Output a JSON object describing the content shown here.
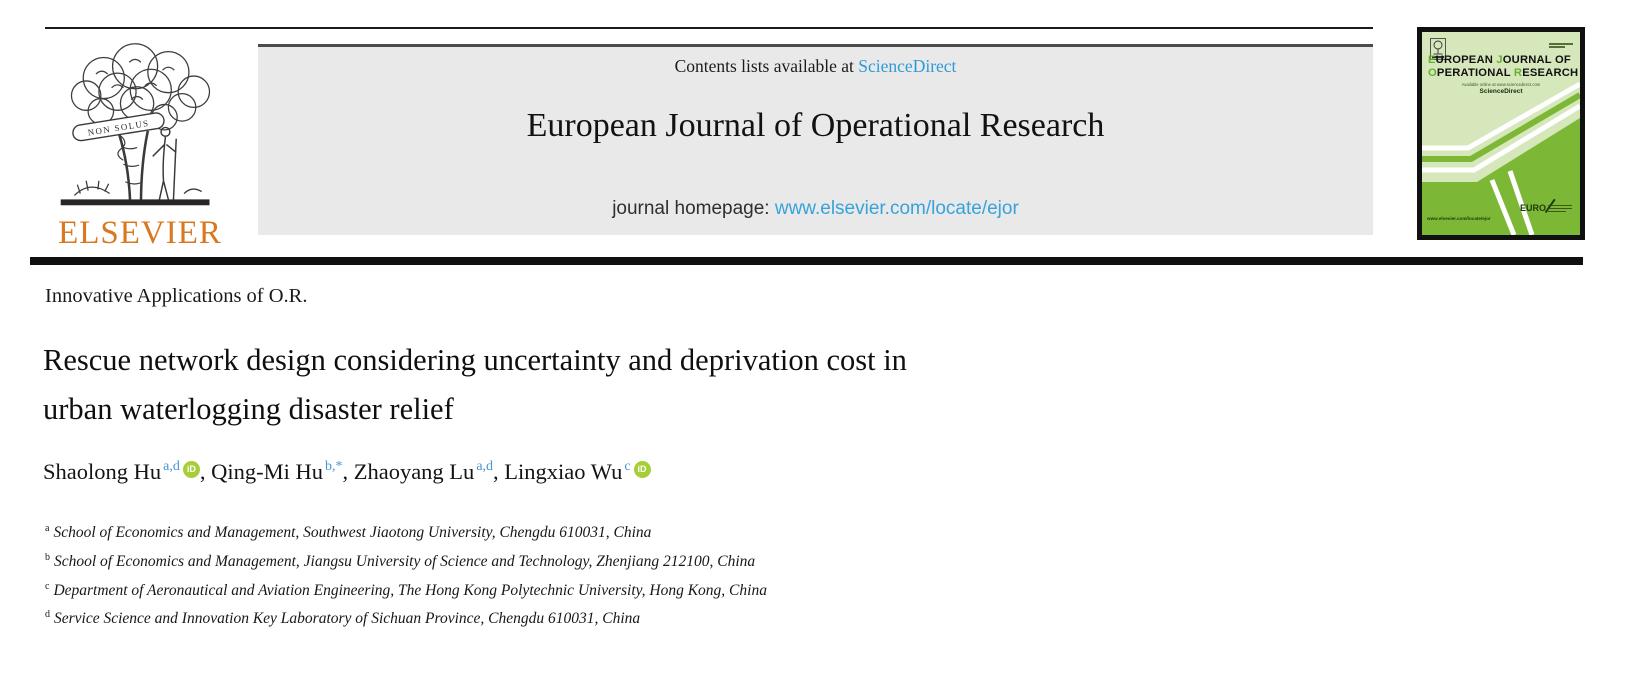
{
  "banner": {
    "contents_prefix": "Contents lists available at ",
    "sciencedirect_label": "ScienceDirect",
    "journal_title": "European Journal of Operational Research",
    "homepage_prefix": "journal homepage: ",
    "homepage_url": "www.elsevier.com/locate/ejor"
  },
  "logo": {
    "publisher": "ELSEVIER",
    "motto": "NON SOLUS"
  },
  "cover": {
    "title_line1": [
      {
        "text": "E",
        "green": true
      },
      {
        "text": "UROPEAN ",
        "green": false
      },
      {
        "text": "J",
        "green": true
      },
      {
        "text": "OURNAL ",
        "green": false
      },
      {
        "text": "OF",
        "green": false
      }
    ],
    "title_line2": [
      {
        "text": "O",
        "green": true
      },
      {
        "text": "PERATIONAL ",
        "green": false
      },
      {
        "text": "R",
        "green": true
      },
      {
        "text": "ESEARCH",
        "green": false
      }
    ],
    "available_note": "Available online at www.sciencedirect.com",
    "sciencedirect": "ScienceDirect",
    "url": "www.elsevier.com/locate/ejor",
    "society": "EURO"
  },
  "article": {
    "section": "Innovative Applications of O.R.",
    "title": "Rescue network design considering uncertainty and deprivation cost in\nurban waterlogging disaster relief",
    "authors": [
      {
        "name": "Shaolong Hu",
        "sup": "a,d",
        "orcid": true
      },
      {
        "name": "Qing-Mi Hu",
        "sup": "b,*",
        "orcid": false
      },
      {
        "name": "Zhaoyang Lu",
        "sup": "a,d",
        "orcid": false
      },
      {
        "name": "Lingxiao Wu",
        "sup": "c",
        "orcid": true
      }
    ],
    "orcid_icon_text": "iD",
    "author_separator": ", ",
    "affiliations": [
      {
        "sup": "a",
        "text": "School of Economics and Management, Southwest Jiaotong University, Chengdu 610031, China"
      },
      {
        "sup": "b",
        "text": "School of Economics and Management, Jiangsu University of Science and Technology, Zhenjiang 212100, China"
      },
      {
        "sup": "c",
        "text": "Department of Aeronautical and Aviation Engineering, The Hong Kong Polytechnic University, Hong Kong, China"
      },
      {
        "sup": "d",
        "text": "Service Science and Innovation Key Laboratory of Sichuan Province, Chengdu 610031, China"
      }
    ]
  },
  "colors": {
    "link_blue": "#2e9bd6",
    "elsevier_orange": "#d9781f",
    "orcid_green": "#a6ce39",
    "superscript_blue": "#4596d1",
    "banner_gray": "#e9e9e9",
    "cover_light_green": "#d6e7bb",
    "cover_green": "#7cb835"
  }
}
